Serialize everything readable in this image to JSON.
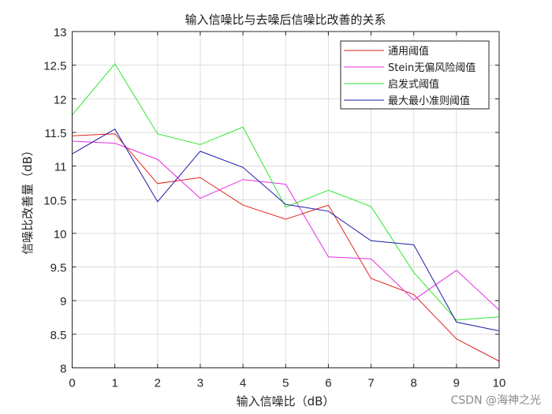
{
  "chart_data": {
    "type": "line",
    "title": "输入信噪比与去噪后信噪比改善的关系",
    "xlabel": "输入信噪比（dB）",
    "ylabel": "信噪比改善量（dB）",
    "xlim": [
      0,
      10
    ],
    "ylim": [
      8,
      13
    ],
    "grid": true,
    "legend_position": "upper right",
    "x": [
      0,
      1,
      2,
      3,
      4,
      5,
      6,
      7,
      8,
      9,
      10
    ],
    "x_ticks": [
      "0",
      "1",
      "2",
      "3",
      "4",
      "5",
      "6",
      "7",
      "8",
      "9",
      "10"
    ],
    "y_ticks": [
      "8",
      "8.5",
      "9",
      "9.5",
      "10",
      "10.5",
      "11",
      "11.5",
      "12",
      "12.5",
      "13"
    ],
    "series": [
      {
        "name": "通用阈值",
        "color": "#e0261e",
        "values": [
          11.45,
          11.48,
          10.74,
          10.83,
          10.42,
          10.21,
          10.42,
          9.33,
          9.09,
          8.43,
          8.1
        ]
      },
      {
        "name": "Stein无偏风险阈值",
        "color": "#e62ee6",
        "values": [
          11.37,
          11.34,
          11.1,
          10.52,
          10.8,
          10.73,
          9.65,
          9.62,
          9.01,
          9.45,
          8.86
        ]
      },
      {
        "name": "启发式阈值",
        "color": "#2ee62e",
        "values": [
          11.76,
          12.52,
          11.48,
          11.32,
          11.58,
          10.39,
          10.64,
          10.4,
          9.42,
          8.71,
          8.76
        ]
      },
      {
        "name": "最大最小准则阈值",
        "color": "#1c1ca8",
        "values": [
          11.18,
          11.55,
          10.47,
          11.22,
          10.98,
          10.43,
          10.33,
          9.89,
          9.83,
          8.68,
          8.55
        ]
      }
    ]
  },
  "watermark": "CSDN @海神之光"
}
